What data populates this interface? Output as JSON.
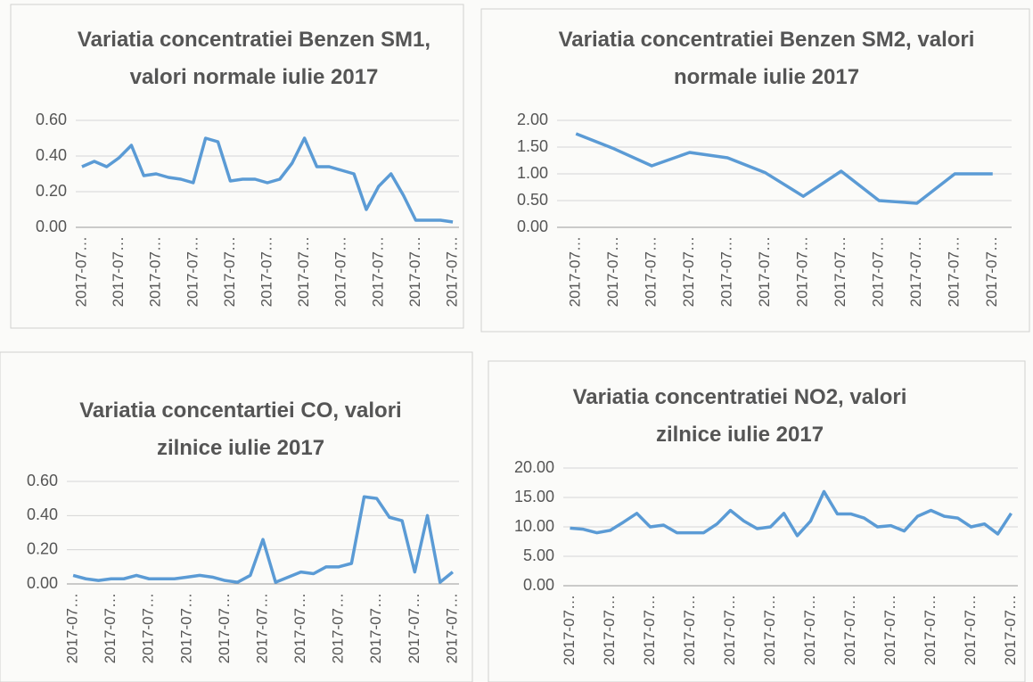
{
  "chart_data": [
    {
      "type": "line",
      "title": "Variatia concentratiei Benzen SM1, valori normale iulie 2017",
      "categories": [
        "2017-07…",
        null,
        null,
        "2017-07…",
        null,
        null,
        "2017-07…",
        null,
        null,
        "2017-07…",
        null,
        null,
        "2017-07…",
        null,
        null,
        "2017-07…",
        null,
        null,
        "2017-07…",
        null,
        null,
        "2017-07…",
        null,
        null,
        "2017-07…",
        null,
        null,
        "2017-07…",
        null,
        null,
        "2017-07…"
      ],
      "series": [
        {
          "color": "#5b9bd5",
          "values": [
            0.34,
            0.37,
            0.34,
            0.39,
            0.46,
            0.29,
            0.3,
            0.28,
            0.27,
            0.25,
            0.5,
            0.48,
            0.26,
            0.27,
            0.27,
            0.25,
            0.27,
            0.36,
            0.5,
            0.34,
            0.34,
            0.32,
            0.3,
            0.1,
            0.23,
            0.3,
            0.18,
            0.04,
            0.04,
            0.04,
            0.03
          ]
        }
      ],
      "ylim": [
        0,
        0.6
      ],
      "yticks": [
        {
          "value": 0,
          "label": "0.00"
        },
        {
          "value": 0.2,
          "label": "0.20"
        },
        {
          "value": 0.4,
          "label": "0.40"
        },
        {
          "value": 0.6,
          "label": "0.60"
        }
      ],
      "grid": true
    },
    {
      "type": "line",
      "title": "Variatia concentratiei Benzen SM2, valori normale iulie 2017",
      "categories": [
        "2017-07…",
        "2017-07…",
        "2017-07…",
        "2017-07…",
        "2017-07…",
        "2017-07…",
        "2017-07…",
        "2017-07…",
        "2017-07…",
        "2017-07…",
        "2017-07…",
        "2017-07…"
      ],
      "series": [
        {
          "color": "#5b9bd5",
          "values": [
            1.75,
            1.47,
            1.15,
            1.4,
            1.3,
            1.02,
            0.58,
            1.05,
            0.5,
            0.45,
            1.0,
            1.0
          ]
        }
      ],
      "ylim": [
        0,
        2
      ],
      "yticks": [
        {
          "value": 0,
          "label": "0.00"
        },
        {
          "value": 0.5,
          "label": "0.50"
        },
        {
          "value": 1,
          "label": "1.00"
        },
        {
          "value": 1.5,
          "label": "1.50"
        },
        {
          "value": 2,
          "label": "2.00"
        }
      ],
      "grid": true
    },
    {
      "type": "line",
      "title": "Variatia concentartiei CO, valori zilnice iulie 2017",
      "categories": [
        "2017-07…",
        null,
        null,
        "2017-07…",
        null,
        null,
        "2017-07…",
        null,
        null,
        "2017-07…",
        null,
        null,
        "2017-07…",
        null,
        null,
        "2017-07…",
        null,
        null,
        "2017-07…",
        null,
        null,
        "2017-07…",
        null,
        null,
        "2017-07…",
        null,
        null,
        "2017-07…",
        null,
        null,
        "2017-07…"
      ],
      "series": [
        {
          "color": "#5b9bd5",
          "values": [
            0.05,
            0.03,
            0.02,
            0.03,
            0.03,
            0.05,
            0.03,
            0.03,
            0.03,
            0.04,
            0.05,
            0.04,
            0.02,
            0.01,
            0.05,
            0.26,
            0.01,
            0.04,
            0.07,
            0.06,
            0.1,
            0.1,
            0.12,
            0.51,
            0.5,
            0.39,
            0.37,
            0.07,
            0.4,
            0.01,
            0.07
          ]
        }
      ],
      "ylim": [
        0,
        0.6
      ],
      "yticks": [
        {
          "value": 0,
          "label": "0.00"
        },
        {
          "value": 0.2,
          "label": "0.20"
        },
        {
          "value": 0.4,
          "label": "0.40"
        },
        {
          "value": 0.6,
          "label": "0.60"
        }
      ],
      "grid": true
    },
    {
      "type": "line",
      "title": "Variatia concentratiei NO2, valori zilnice iulie 2017",
      "categories": [
        "2017-07…",
        null,
        null,
        "2017-07…",
        null,
        null,
        "2017-07…",
        null,
        null,
        "2017-07…",
        null,
        null,
        "2017-07…",
        null,
        null,
        "2017-07…",
        null,
        null,
        "2017-07…",
        null,
        null,
        "2017-07…",
        null,
        null,
        "2017-07…",
        null,
        null,
        "2017-07…",
        null,
        null,
        "2017-07…",
        null,
        null,
        "2017-07…"
      ],
      "series": [
        {
          "color": "#5b9bd5",
          "values": [
            9.8,
            9.6,
            9.0,
            9.4,
            10.8,
            12.3,
            10.0,
            10.3,
            9.0,
            9.0,
            9.0,
            10.5,
            12.8,
            11.0,
            9.7,
            10.0,
            12.3,
            8.5,
            11.0,
            16.0,
            12.2,
            12.2,
            11.5,
            10.0,
            10.2,
            9.3,
            11.8,
            12.8,
            11.8,
            11.5,
            10.0,
            10.5,
            8.8,
            12.3
          ]
        }
      ],
      "ylim": [
        0,
        20
      ],
      "yticks": [
        {
          "value": 0,
          "label": "0.00"
        },
        {
          "value": 5,
          "label": "5.00"
        },
        {
          "value": 10,
          "label": "10.00"
        },
        {
          "value": 15,
          "label": "15.00"
        },
        {
          "value": 20,
          "label": "20.00"
        }
      ],
      "grid": true
    }
  ]
}
